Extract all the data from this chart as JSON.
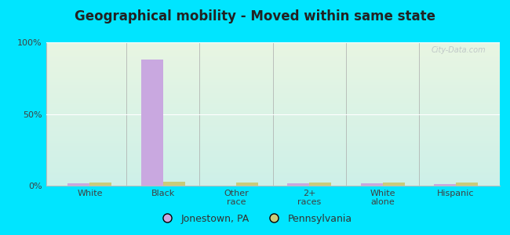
{
  "title": "Geographical mobility - Moved within same state",
  "categories": [
    "White",
    "Black",
    "Other\nrace",
    "2+\nraces",
    "White\nalone",
    "Hispanic"
  ],
  "jonestown_values": [
    1.5,
    88.0,
    0.0,
    1.5,
    1.5,
    1.0
  ],
  "pennsylvania_values": [
    2.0,
    2.5,
    2.0,
    2.0,
    2.0,
    2.0
  ],
  "bar_color_jonestown": "#c9a8e0",
  "bar_color_pennsylvania": "#c8cc7a",
  "legend_jonestown": "Jonestown, PA",
  "legend_pennsylvania": "Pennsylvania",
  "ylim": [
    0,
    100
  ],
  "yticks": [
    0,
    50,
    100
  ],
  "ytick_labels": [
    "0%",
    "50%",
    "100%"
  ],
  "background_outer": "#00e5ff",
  "background_inner_top": "#e8f5e2",
  "background_inner_bottom": "#cdf0e8",
  "title_fontsize": 12,
  "bar_width": 0.3,
  "watermark": "City-Data.com"
}
